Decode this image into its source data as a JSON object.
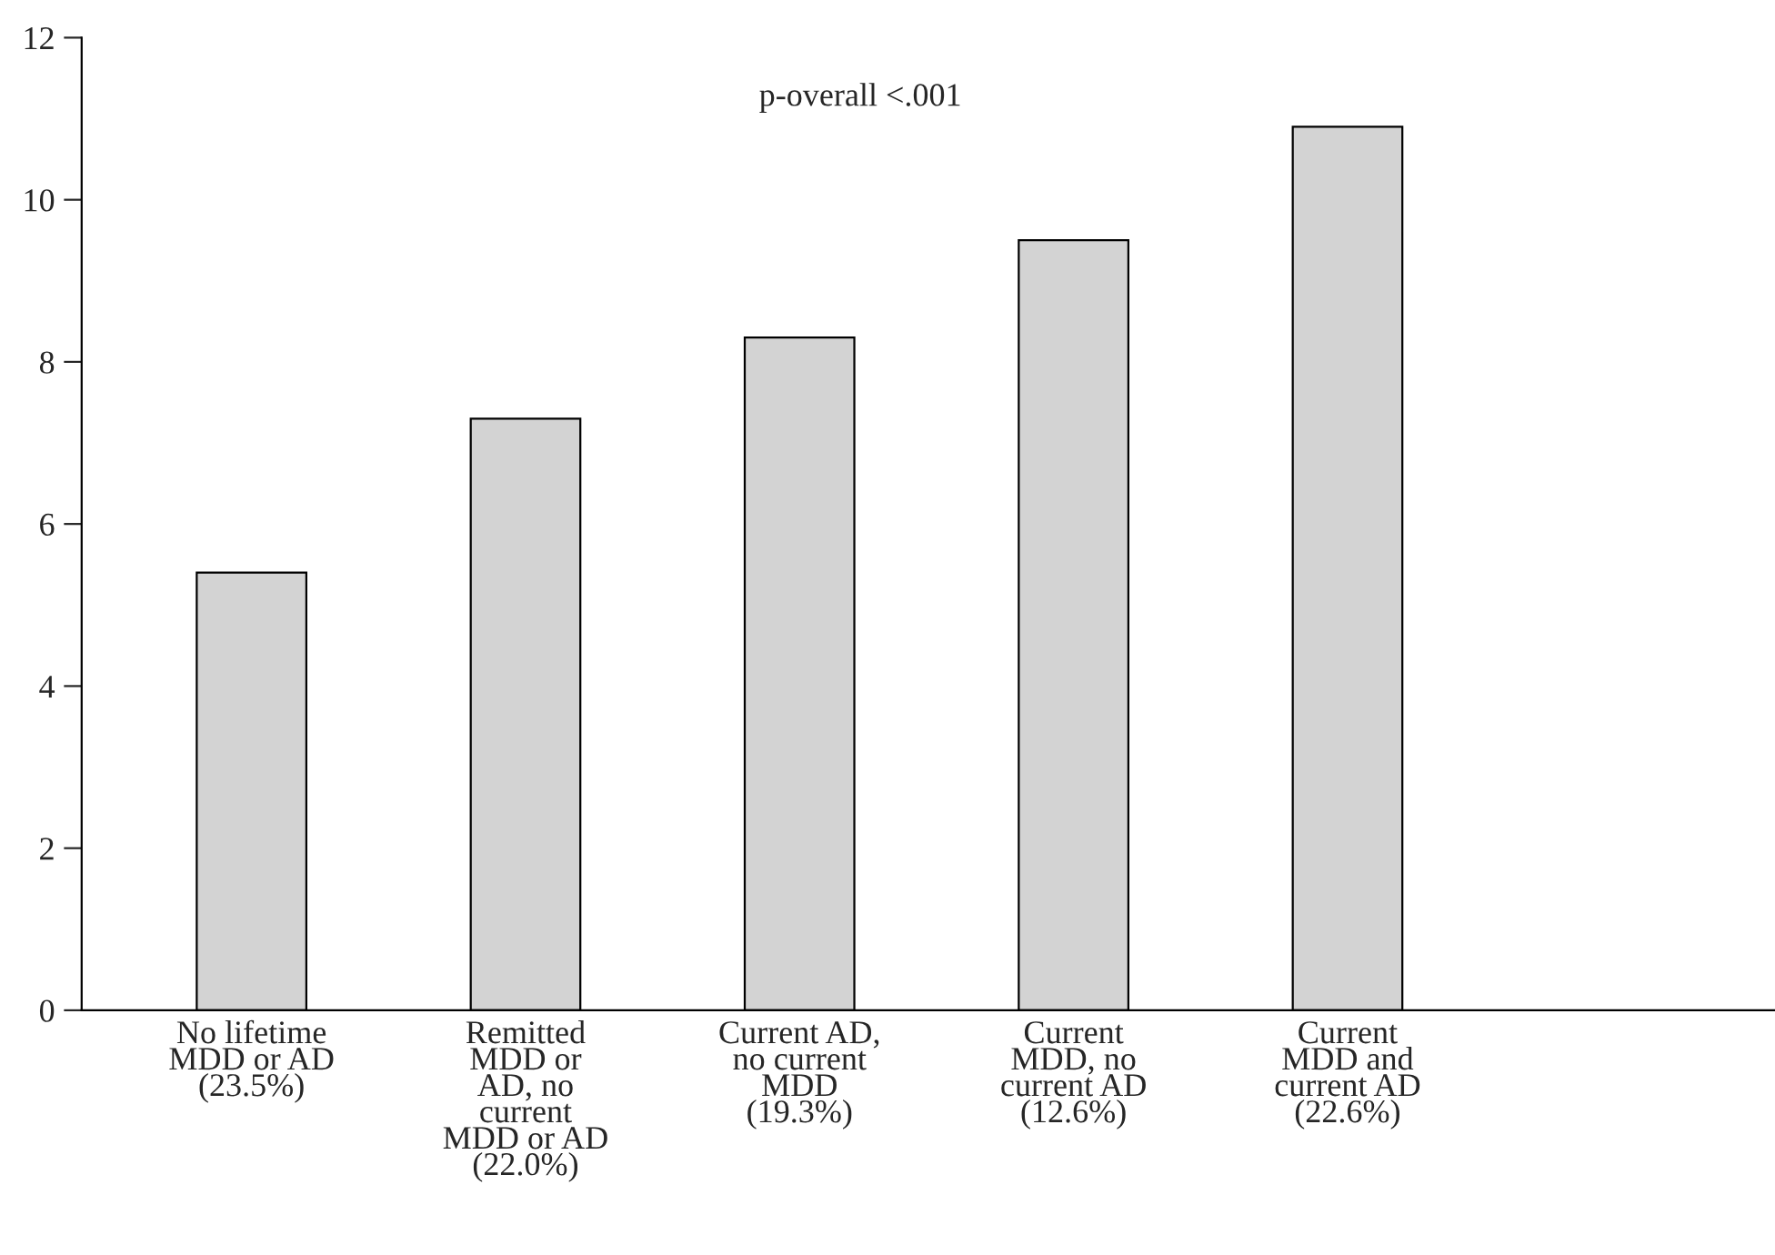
{
  "chart_data": {
    "type": "bar",
    "categories": [
      "No lifetime\nMDD or AD\n(23.5%)",
      "Remitted\nMDD or\nAD, no\ncurrent\nMDD or AD\n(22.0%)",
      "Current AD,\nno current\nMDD\n(19.3%)",
      "Current\nMDD, no\ncurrent AD\n(12.6%)",
      "Current\nMDD and\ncurrent AD\n(22.6%)"
    ],
    "values": [
      5.4,
      7.3,
      8.3,
      9.5,
      10.9
    ],
    "color": "#d3d3d3",
    "ylim": [
      0,
      12
    ],
    "yticks": [
      0,
      2,
      4,
      6,
      8,
      10,
      12
    ],
    "annotations": [
      "p-overall <.001"
    ],
    "grid": false
  }
}
